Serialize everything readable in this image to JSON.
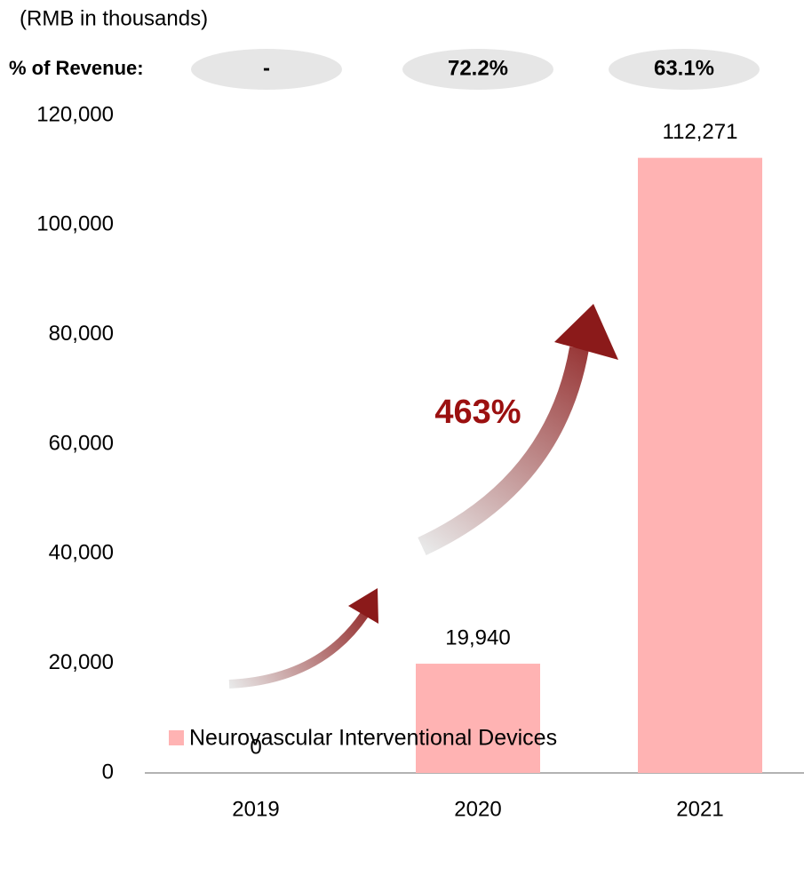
{
  "chart_data": {
    "type": "bar",
    "subtitle": "(RMB in thousands)",
    "revenue_share_label": "% of Revenue:",
    "revenue_share": [
      "-",
      "72.2%",
      "63.1%"
    ],
    "categories": [
      "2019",
      "2020",
      "2021"
    ],
    "series": [
      {
        "name": "Neurovascular Interventional Devices",
        "color": "#ffb3b3",
        "values": [
          0,
          19940,
          112271
        ],
        "value_labels": [
          "0",
          "19,940",
          "112,271"
        ]
      }
    ],
    "annotation": "463%",
    "ylim": [
      0,
      120000
    ],
    "yticks": [
      0,
      {
        "value": 20000,
        "label": "20,000"
      },
      {
        "value": 40000,
        "label": "40,000"
      },
      {
        "value": 60000,
        "label": "60,000"
      },
      {
        "value": 80000,
        "label": "80,000"
      },
      {
        "value": 100000,
        "label": "100,000"
      },
      {
        "value": 120000,
        "label": "120,000"
      }
    ],
    "grid": false,
    "legend": "bottom"
  }
}
